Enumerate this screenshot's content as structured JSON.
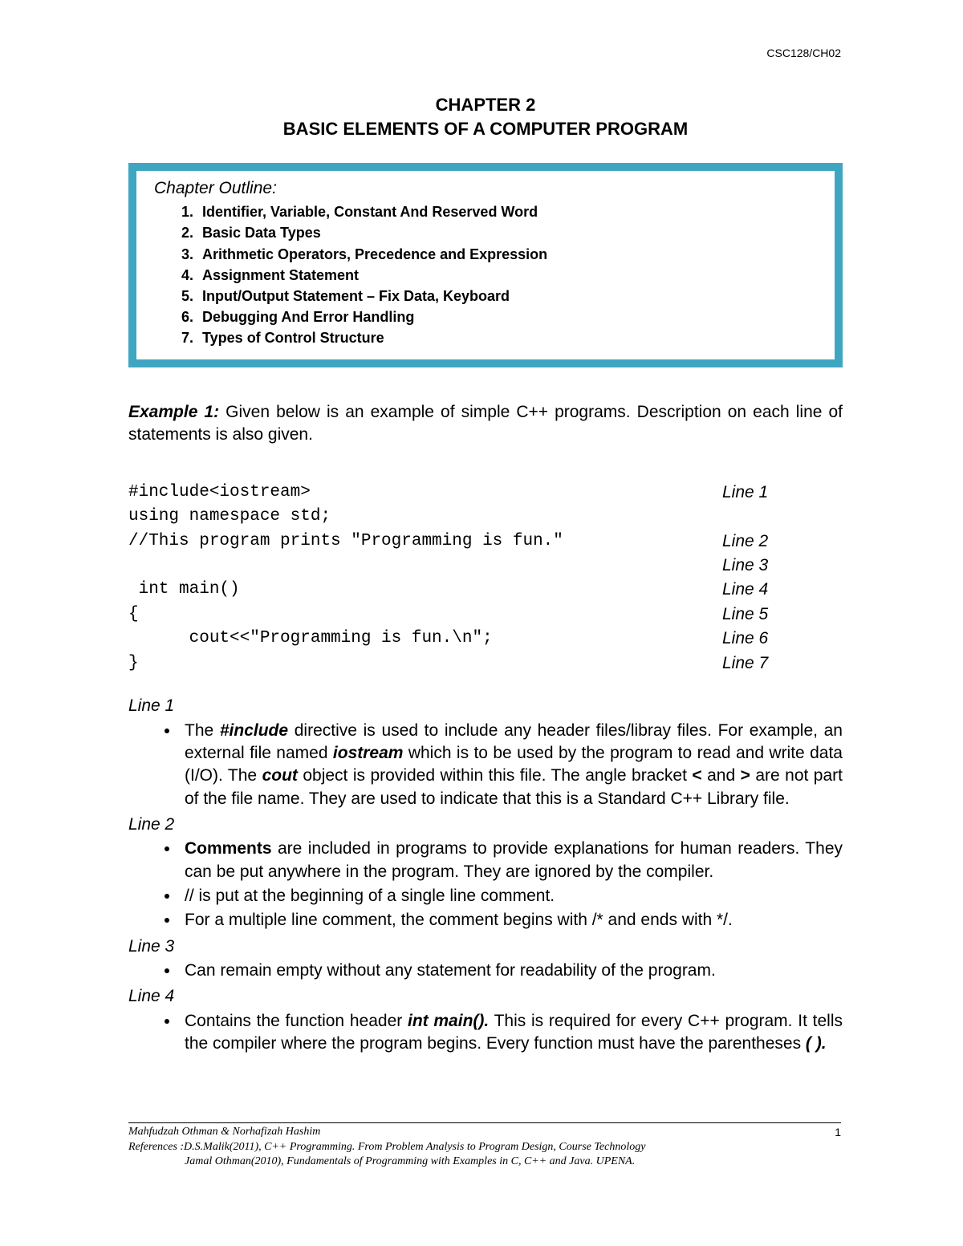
{
  "header_code": "CSC128/CH02",
  "chapter": {
    "line1": "CHAPTER 2",
    "line2": "BASIC ELEMENTS OF A COMPUTER PROGRAM"
  },
  "outline": {
    "title": "Chapter Outline:",
    "items": [
      "Identifier, Variable, Constant And  Reserved Word",
      "Basic Data Types",
      "Arithmetic Operators, Precedence and Expression",
      "Assignment Statement",
      "Input/Output Statement – Fix Data, Keyboard",
      "Debugging And Error Handling",
      "Types of Control Structure"
    ]
  },
  "example": {
    "label": "Example 1:",
    "text": " Given below is an example of simple C++ programs. Description on each line of statements is also given."
  },
  "code": {
    "rows": [
      {
        "code": "#include<iostream>",
        "label": "Line 1"
      },
      {
        "code": "using namespace std;",
        "label": ""
      },
      {
        "code": "//This program prints \"Programming is fun.\"",
        "label": "Line 2"
      },
      {
        "code": "",
        "label": "Line 3"
      },
      {
        "code": " int main()",
        "label": "Line 4"
      },
      {
        "code": "{",
        "label": "Line 5"
      },
      {
        "code": "      cout<<\"Programming is fun.\\n\";",
        "label": "Line 6"
      },
      {
        "code": "}",
        "label": "Line 7"
      }
    ]
  },
  "explanations": {
    "line1": {
      "head": "Line 1",
      "bullets": [
        {
          "pre": "The ",
          "b1": "#include",
          "mid1": " directive is used to include any header files/libray files. For example, an external file named ",
          "b2": "iostream",
          "mid2": " which is to be used by the program to read and write data (I/O). The ",
          "b3": "cout",
          "mid3": " object is provided within this file. The angle bracket ",
          "b4": "<",
          "mid4": " and ",
          "b5": ">",
          "post": " are not part of the file name. They are used to indicate that this is a Standard C++ Library file."
        }
      ]
    },
    "line2": {
      "head": "Line 2",
      "bullets_rich": {
        "b1_pre": "",
        "b1_bold": "Comments",
        "b1_post": " are included in programs to provide explanations for human readers. They can be put anywhere in the program.  They are ignored by the compiler."
      },
      "bullets_plain": [
        "// is put at the beginning of a single line comment.",
        "For a multiple line comment, the comment begins with /* and ends with */."
      ]
    },
    "line3": {
      "head": "Line 3",
      "bullets": [
        "Can remain empty without any statement for readability of the program."
      ]
    },
    "line4": {
      "head": "Line 4",
      "bullet": {
        "pre": "Contains the function header ",
        "b1": "int main().",
        "mid": " This is required for every C++ program. It tells the compiler where the program begins. Every function must have the parentheses ",
        "b2": "( ).",
        "post": ""
      }
    }
  },
  "footer": {
    "authors": "Mahfudzah Othman & Norhafizah Hashim",
    "ref1": "References :D.S.Malik(2011), C++ Programming. From Problem Analysis to Program Design, Course Technology",
    "ref2": "Jamal Othman(2010), Fundamentals of Programming with Examples in C, C++ and Java. UPENA.",
    "page": "1"
  },
  "colors": {
    "outline_border": "#3fa6c2",
    "background": "#ffffff",
    "text": "#000000"
  }
}
